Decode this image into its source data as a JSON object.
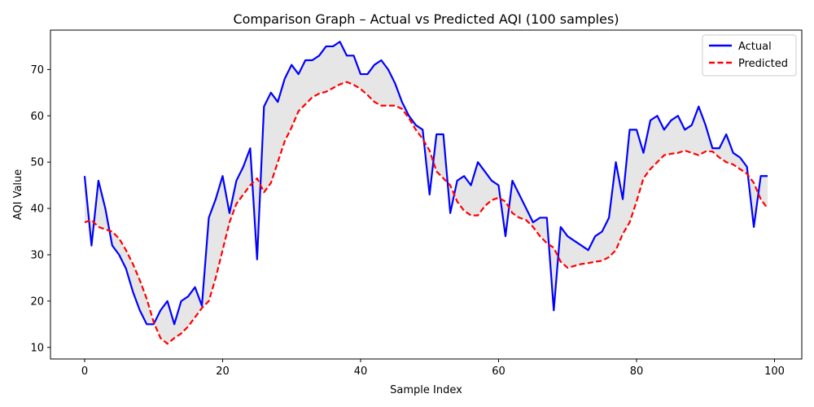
{
  "chart_data": {
    "type": "line",
    "title": "Comparison Graph – Actual vs Predicted AQI (100 samples)",
    "xlabel": "Sample Index",
    "ylabel": "AQI Value",
    "xlim": [
      -4.95,
      103.95
    ],
    "ylim": [
      7.5,
      78.5
    ],
    "xticks": [
      0,
      20,
      40,
      60,
      80,
      100
    ],
    "yticks": [
      10,
      20,
      30,
      40,
      50,
      60,
      70
    ],
    "grid": false,
    "legend_position": "top-right",
    "fill_between": {
      "color": "#bdbdbd",
      "opacity": 0.38
    },
    "series": [
      {
        "name": "Actual",
        "color": "#0000ff",
        "style": "solid",
        "values": [
          47,
          32,
          46,
          40,
          32,
          30,
          27,
          22,
          18,
          15,
          15,
          18,
          20,
          15,
          20,
          21,
          23,
          19,
          38,
          42,
          47,
          39,
          46,
          49,
          53,
          29,
          62,
          65,
          63,
          68,
          71,
          69,
          72,
          72,
          73,
          75,
          75,
          76,
          73,
          73,
          69,
          69,
          71,
          72,
          70,
          67,
          63,
          60,
          58,
          57,
          43,
          56,
          56,
          39,
          46,
          47,
          45,
          50,
          48,
          46,
          45,
          34,
          46,
          43,
          40,
          37,
          38,
          38,
          18,
          36,
          34,
          33,
          32,
          31,
          34,
          35,
          38,
          50,
          42,
          57,
          57,
          52,
          59,
          60,
          57,
          59,
          60,
          57,
          58,
          62,
          58,
          53,
          53,
          56,
          52,
          51,
          49,
          36,
          47,
          47
        ]
      },
      {
        "name": "Predicted",
        "color": "#ff0000",
        "style": "dashed",
        "values": [
          37,
          37.5,
          36,
          35.5,
          35,
          33.5,
          31,
          28,
          24.5,
          20.5,
          15.5,
          12,
          10.8,
          12,
          13,
          14.5,
          16.5,
          18.5,
          20,
          25,
          31,
          37,
          41,
          43,
          45,
          46.5,
          43.5,
          45.5,
          50,
          54.5,
          57.5,
          61,
          62.5,
          64,
          64.8,
          65.2,
          66,
          66.8,
          67.3,
          66.7,
          65.8,
          64.5,
          63,
          62.2,
          62.2,
          62.2,
          61.5,
          59.5,
          57,
          55,
          52.5,
          48,
          46.5,
          45,
          41.5,
          39.5,
          38.5,
          38.5,
          40.5,
          41.8,
          42.3,
          41.5,
          39,
          38,
          37.5,
          36,
          34,
          32.5,
          31.5,
          28.5,
          27.2,
          27.6,
          28,
          28.2,
          28.5,
          28.7,
          29.5,
          31,
          34.5,
          37,
          41.5,
          46.5,
          48.5,
          50,
          51.5,
          51.8,
          52,
          52.5,
          52,
          51.5,
          52.3,
          52.3,
          51,
          50,
          49.5,
          48.5,
          47.5,
          45.5,
          42,
          40
        ]
      }
    ]
  }
}
